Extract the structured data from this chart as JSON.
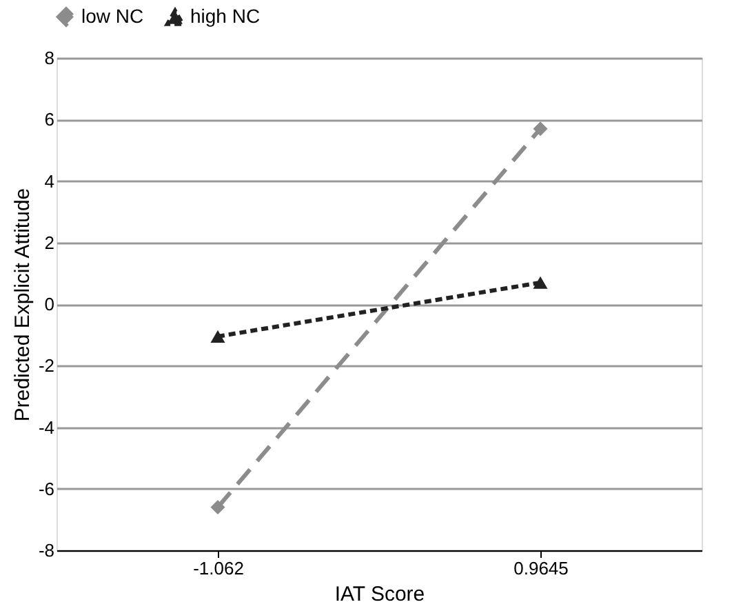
{
  "chart_data": {
    "type": "line",
    "xlabel": "IAT Score",
    "ylabel": "Predicted Explicit Attitude",
    "categories": [
      "-1.062",
      "0.9645"
    ],
    "series": [
      {
        "name": "low NC",
        "color": "#8c8c8c",
        "values": [
          -6.6,
          5.7
        ],
        "marker": "diamond",
        "line_style": "dashed"
      },
      {
        "name": "high NC",
        "color": "#222222",
        "values": [
          -1.05,
          0.7
        ],
        "marker": "triangle",
        "line_style": "dashed"
      }
    ],
    "ylim": [
      -8,
      8
    ],
    "yticks": [
      -8,
      -6,
      -4,
      -2,
      0,
      2,
      4,
      6,
      8
    ],
    "grid": "y",
    "legend": "top"
  }
}
